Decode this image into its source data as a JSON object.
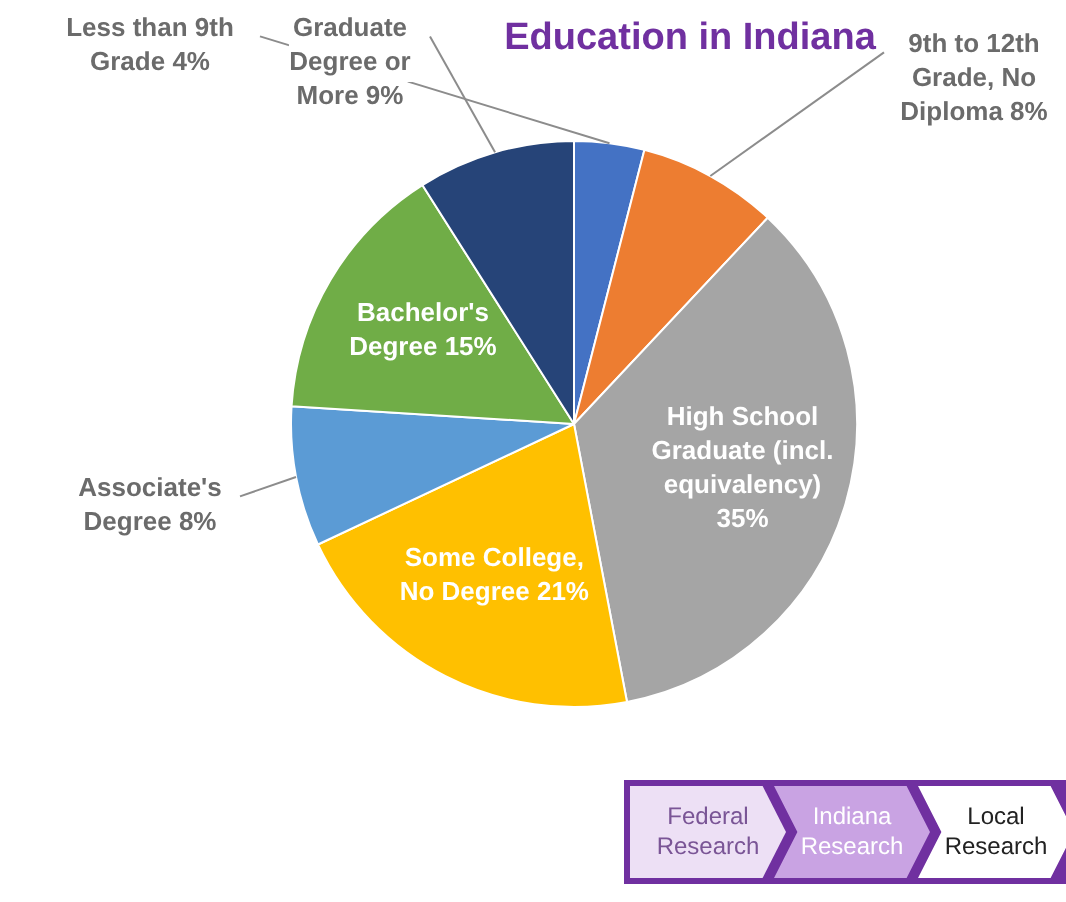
{
  "chart_data": {
    "type": "pie",
    "title": "Education in Indiana",
    "categories": [
      "Less than 9th Grade",
      "9th to 12th Grade, No Diploma",
      "High School Graduate (incl. equivalency)",
      "Some College, No Degree",
      "Associate's Degree",
      "Bachelor's Degree",
      "Graduate Degree or More"
    ],
    "values": [
      4,
      8,
      35,
      21,
      8,
      15,
      9
    ],
    "value_labels": [
      "4%",
      "8%",
      "35%",
      "21%",
      "8%",
      "15%",
      "9%"
    ],
    "colors": [
      "#4472c4",
      "#ed7d31",
      "#a5a5a5",
      "#ffc000",
      "#5b9bd5",
      "#70ad47",
      "#264478"
    ],
    "legend": false,
    "annotations": [
      "Federal Research",
      "Indiana Research",
      "Local Research"
    ]
  }
}
